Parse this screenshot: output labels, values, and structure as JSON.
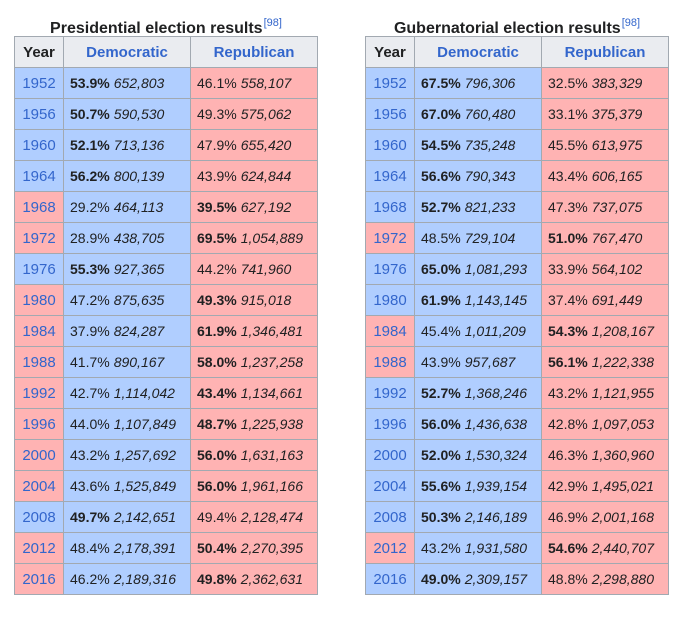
{
  "presidential": {
    "caption": "Presidential election results",
    "ref": "[98]",
    "headers": {
      "year": "Year",
      "dem": "Democratic",
      "rep": "Republican"
    },
    "rows": [
      {
        "year": "1952",
        "winner": "D",
        "dem_pct": "53.9%",
        "dem_votes": "652,803",
        "rep_pct": "46.1%",
        "rep_votes": "558,107"
      },
      {
        "year": "1956",
        "winner": "D",
        "dem_pct": "50.7%",
        "dem_votes": "590,530",
        "rep_pct": "49.3%",
        "rep_votes": "575,062"
      },
      {
        "year": "1960",
        "winner": "D",
        "dem_pct": "52.1%",
        "dem_votes": "713,136",
        "rep_pct": "47.9%",
        "rep_votes": "655,420"
      },
      {
        "year": "1964",
        "winner": "D",
        "dem_pct": "56.2%",
        "dem_votes": "800,139",
        "rep_pct": "43.9%",
        "rep_votes": "624,844"
      },
      {
        "year": "1968",
        "winner": "R",
        "dem_pct": "29.2%",
        "dem_votes": "464,113",
        "rep_pct": "39.5%",
        "rep_votes": "627,192"
      },
      {
        "year": "1972",
        "winner": "R",
        "dem_pct": "28.9%",
        "dem_votes": "438,705",
        "rep_pct": "69.5%",
        "rep_votes": "1,054,889"
      },
      {
        "year": "1976",
        "winner": "D",
        "dem_pct": "55.3%",
        "dem_votes": "927,365",
        "rep_pct": "44.2%",
        "rep_votes": "741,960"
      },
      {
        "year": "1980",
        "winner": "R",
        "dem_pct": "47.2%",
        "dem_votes": "875,635",
        "rep_pct": "49.3%",
        "rep_votes": "915,018"
      },
      {
        "year": "1984",
        "winner": "R",
        "dem_pct": "37.9%",
        "dem_votes": "824,287",
        "rep_pct": "61.9%",
        "rep_votes": "1,346,481"
      },
      {
        "year": "1988",
        "winner": "R",
        "dem_pct": "41.7%",
        "dem_votes": "890,167",
        "rep_pct": "58.0%",
        "rep_votes": "1,237,258"
      },
      {
        "year": "1992",
        "winner": "R",
        "dem_pct": "42.7%",
        "dem_votes": "1,114,042",
        "rep_pct": "43.4%",
        "rep_votes": "1,134,661"
      },
      {
        "year": "1996",
        "winner": "R",
        "dem_pct": "44.0%",
        "dem_votes": "1,107,849",
        "rep_pct": "48.7%",
        "rep_votes": "1,225,938"
      },
      {
        "year": "2000",
        "winner": "R",
        "dem_pct": "43.2%",
        "dem_votes": "1,257,692",
        "rep_pct": "56.0%",
        "rep_votes": "1,631,163"
      },
      {
        "year": "2004",
        "winner": "R",
        "dem_pct": "43.6%",
        "dem_votes": "1,525,849",
        "rep_pct": "56.0%",
        "rep_votes": "1,961,166"
      },
      {
        "year": "2008",
        "winner": "D",
        "dem_pct": "49.7%",
        "dem_votes": "2,142,651",
        "rep_pct": "49.4%",
        "rep_votes": "2,128,474"
      },
      {
        "year": "2012",
        "winner": "R",
        "dem_pct": "48.4%",
        "dem_votes": "2,178,391",
        "rep_pct": "50.4%",
        "rep_votes": "2,270,395"
      },
      {
        "year": "2016",
        "winner": "R",
        "dem_pct": "46.2%",
        "dem_votes": "2,189,316",
        "rep_pct": "49.8%",
        "rep_votes": "2,362,631"
      }
    ]
  },
  "gubernatorial": {
    "caption": "Gubernatorial election results",
    "ref": "[98]",
    "headers": {
      "year": "Year",
      "dem": "Democratic",
      "rep": "Republican"
    },
    "rows": [
      {
        "year": "1952",
        "winner": "D",
        "dem_pct": "67.5%",
        "dem_votes": "796,306",
        "rep_pct": "32.5%",
        "rep_votes": "383,329"
      },
      {
        "year": "1956",
        "winner": "D",
        "dem_pct": "67.0%",
        "dem_votes": "760,480",
        "rep_pct": "33.1%",
        "rep_votes": "375,379"
      },
      {
        "year": "1960",
        "winner": "D",
        "dem_pct": "54.5%",
        "dem_votes": "735,248",
        "rep_pct": "45.5%",
        "rep_votes": "613,975"
      },
      {
        "year": "1964",
        "winner": "D",
        "dem_pct": "56.6%",
        "dem_votes": "790,343",
        "rep_pct": "43.4%",
        "rep_votes": "606,165"
      },
      {
        "year": "1968",
        "winner": "D",
        "dem_pct": "52.7%",
        "dem_votes": "821,233",
        "rep_pct": "47.3%",
        "rep_votes": "737,075"
      },
      {
        "year": "1972",
        "winner": "R",
        "dem_pct": "48.5%",
        "dem_votes": "729,104",
        "rep_pct": "51.0%",
        "rep_votes": "767,470"
      },
      {
        "year": "1976",
        "winner": "D",
        "dem_pct": "65.0%",
        "dem_votes": "1,081,293",
        "rep_pct": "33.9%",
        "rep_votes": "564,102"
      },
      {
        "year": "1980",
        "winner": "D",
        "dem_pct": "61.9%",
        "dem_votes": "1,143,145",
        "rep_pct": "37.4%",
        "rep_votes": "691,449"
      },
      {
        "year": "1984",
        "winner": "R",
        "dem_pct": "45.4%",
        "dem_votes": "1,011,209",
        "rep_pct": "54.3%",
        "rep_votes": "1,208,167"
      },
      {
        "year": "1988",
        "winner": "R",
        "dem_pct": "43.9%",
        "dem_votes": "957,687",
        "rep_pct": "56.1%",
        "rep_votes": "1,222,338"
      },
      {
        "year": "1992",
        "winner": "D",
        "dem_pct": "52.7%",
        "dem_votes": "1,368,246",
        "rep_pct": "43.2%",
        "rep_votes": "1,121,955"
      },
      {
        "year": "1996",
        "winner": "D",
        "dem_pct": "56.0%",
        "dem_votes": "1,436,638",
        "rep_pct": "42.8%",
        "rep_votes": "1,097,053"
      },
      {
        "year": "2000",
        "winner": "D",
        "dem_pct": "52.0%",
        "dem_votes": "1,530,324",
        "rep_pct": "46.3%",
        "rep_votes": "1,360,960"
      },
      {
        "year": "2004",
        "winner": "D",
        "dem_pct": "55.6%",
        "dem_votes": "1,939,154",
        "rep_pct": "42.9%",
        "rep_votes": "1,495,021"
      },
      {
        "year": "2008",
        "winner": "D",
        "dem_pct": "50.3%",
        "dem_votes": "2,146,189",
        "rep_pct": "46.9%",
        "rep_votes": "2,001,168"
      },
      {
        "year": "2012",
        "winner": "R",
        "dem_pct": "43.2%",
        "dem_votes": "1,931,580",
        "rep_pct": "54.6%",
        "rep_votes": "2,440,707"
      },
      {
        "year": "2016",
        "winner": "D",
        "dem_pct": "49.0%",
        "dem_votes": "2,309,157",
        "rep_pct": "48.8%",
        "rep_votes": "2,298,880"
      }
    ]
  },
  "colors": {
    "dem_fill": "#b0ceff",
    "rep_fill": "#ffb3b3",
    "link": "#3366cc"
  }
}
